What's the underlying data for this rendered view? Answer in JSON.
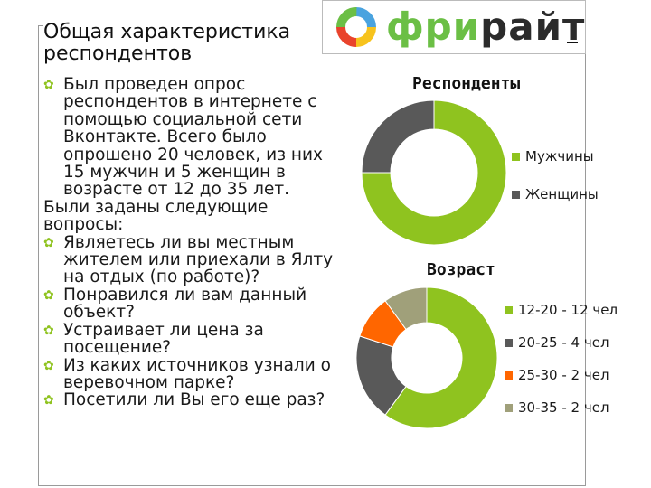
{
  "title": {
    "line1": "Общая характеристика",
    "line2": "респондентов"
  },
  "logo": {
    "text_color_part": "фри",
    "text_dark_part": "райт",
    "icon": "ring-logo-icon"
  },
  "body": {
    "intro_lines": [
      "Был проведен опрос",
      "респондентов в интернете с",
      "помощью социальной сети",
      "Вконтакте. Всего было",
      "опрошено 20 человек, из них",
      "15 мужчин и 5 женщин в",
      "возрасте от 12 до 35 лет."
    ],
    "questions_header_lines": [
      "Были заданы следующие",
      "вопросы:"
    ],
    "questions": [
      [
        "Являетесь ли вы местным",
        "жителем или приехали в Ялту",
        "на отдых (по работе)?"
      ],
      [
        "Понравился ли вам данный",
        "объект?"
      ],
      [
        "Устраивает ли цена за",
        "посещение?"
      ],
      [
        "Из каких источников узнали о",
        "веревочном парке?"
      ],
      [
        "Посетили ли Вы его еще раз?"
      ]
    ]
  },
  "chart_data": [
    {
      "type": "pie",
      "title": "Респонденты",
      "categories": [
        "Мужчины",
        "Женщины"
      ],
      "values": [
        15,
        5
      ],
      "colors": [
        "#8fc31f",
        "#595959"
      ]
    },
    {
      "type": "pie",
      "title": "Возраст",
      "categories": [
        "12-20 - 12 чел",
        "20-25 - 4 чел",
        "25-30 - 2 чел",
        "30-35 - 2 чел"
      ],
      "values": [
        12,
        4,
        2,
        2
      ],
      "colors": [
        "#8fc31f",
        "#595959",
        "#ff6600",
        "#a0a07a"
      ]
    }
  ]
}
